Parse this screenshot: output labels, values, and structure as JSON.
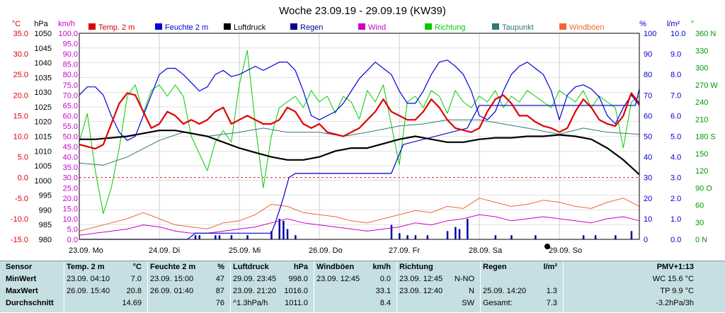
{
  "chart_data": {
    "type": "line",
    "title": "Woche 23.09.19 - 29.09.19 (KW39)",
    "x_ticks": [
      "23.09.",
      "24.09.",
      "25.09.",
      "26.09.",
      "27.09.",
      "28.09.",
      "29.09."
    ],
    "x_day_labels": [
      "Mo",
      "Di",
      "Mi",
      "Do",
      "Fr",
      "Sa",
      "So"
    ],
    "x_range": [
      0,
      7
    ],
    "axes": {
      "temp": {
        "unit": "°C",
        "color": "#e00000",
        "range": [
          -15,
          35
        ],
        "ticks": [
          "35.0",
          "30.0",
          "25.0",
          "20.0",
          "15.0",
          "10.0",
          "5.0",
          "0.0",
          "-5.0",
          "-10.0",
          "-15.0"
        ]
      },
      "press": {
        "unit": "hPa",
        "color": "#000000",
        "range": [
          980,
          1050
        ],
        "ticks": [
          "1050",
          "1045",
          "1040",
          "1035",
          "1030",
          "1025",
          "1020",
          "1015",
          "1010",
          "1005",
          "1000",
          "995",
          "990",
          "985",
          "980"
        ]
      },
      "wind": {
        "unit": "km/h",
        "color": "#cc00cc",
        "range": [
          0,
          100
        ],
        "ticks": [
          "100.0",
          "95.0",
          "90.0",
          "85.0",
          "80.0",
          "75.0",
          "70.0",
          "65.0",
          "60.0",
          "55.0",
          "50.0",
          "45.0",
          "40.0",
          "35.0",
          "30.0",
          "25.0",
          "20.0",
          "15.0",
          "10.0",
          "5.0",
          "0.0"
        ]
      },
      "hum": {
        "unit": "%",
        "color": "#0000cc",
        "range": [
          0,
          100
        ],
        "ticks": [
          "100",
          "90",
          "80",
          "70",
          "60",
          "50",
          "40",
          "30",
          "20",
          "10",
          "0"
        ]
      },
      "rain": {
        "unit": "l/m²",
        "color": "#0000cc",
        "range": [
          0,
          10
        ],
        "ticks": [
          "10.0",
          "9.0",
          "8.0",
          "7.0",
          "6.0",
          "5.0",
          "4.0",
          "3.0",
          "2.0",
          "1.0",
          "0.0"
        ]
      },
      "dir": {
        "unit": "°",
        "color": "#009900",
        "range": [
          0,
          360
        ],
        "ticks": [
          "360 N",
          "330",
          "300",
          "270 W",
          "240",
          "210",
          "180 S",
          "150",
          "120",
          "90 O",
          "60",
          "30",
          "0 N"
        ]
      }
    },
    "legend": [
      {
        "name": "Temp. 2 m",
        "color": "#e00000"
      },
      {
        "name": "Feuchte 2 m",
        "color": "#0000dd"
      },
      {
        "name": "Luftdruck",
        "color": "#000000"
      },
      {
        "name": "Regen",
        "color": "#000099"
      },
      {
        "name": "Wind",
        "color": "#cc00cc"
      },
      {
        "name": "Richtung",
        "color": "#00cc00"
      },
      {
        "name": "Taupunkt",
        "color": "#337777"
      },
      {
        "name": "Windböen",
        "color": "#ee6633"
      }
    ],
    "series": [
      {
        "name": "Temp. 2 m",
        "axis": "temp",
        "color": "#e00000",
        "width": 2.2,
        "x": [
          0,
          0.1,
          0.2,
          0.3,
          0.4,
          0.5,
          0.6,
          0.7,
          0.8,
          0.9,
          1.0,
          1.1,
          1.2,
          1.3,
          1.4,
          1.5,
          1.6,
          1.7,
          1.8,
          1.9,
          2.0,
          2.1,
          2.2,
          2.3,
          2.4,
          2.5,
          2.6,
          2.7,
          2.8,
          2.9,
          3.0,
          3.1,
          3.2,
          3.3,
          3.4,
          3.5,
          3.6,
          3.7,
          3.8,
          3.9,
          4.0,
          4.1,
          4.2,
          4.3,
          4.4,
          4.5,
          4.6,
          4.7,
          4.8,
          4.9,
          5.0,
          5.1,
          5.2,
          5.3,
          5.4,
          5.5,
          5.6,
          5.7,
          5.8,
          5.9,
          6.0,
          6.1,
          6.2,
          6.3,
          6.4,
          6.5,
          6.6,
          6.7,
          6.8,
          6.9,
          7.0
        ],
        "y": [
          8,
          7.5,
          7,
          8,
          13,
          18,
          20.5,
          20,
          16,
          12,
          13,
          16,
          15,
          13,
          14,
          13,
          14,
          16,
          17,
          13,
          14,
          15,
          14,
          13,
          13,
          14,
          17,
          16,
          13,
          12,
          13,
          11,
          10.5,
          10,
          11,
          12,
          14,
          16,
          19,
          16,
          15,
          14,
          14,
          16,
          19,
          17,
          14,
          12,
          11.5,
          11,
          12,
          16,
          19,
          20,
          18,
          15,
          15,
          13.5,
          12.5,
          12,
          11,
          12,
          16,
          19,
          17,
          14,
          13,
          12.5,
          15,
          20.5,
          18
        ]
      },
      {
        "name": "Feuchte 2 m",
        "axis": "hum",
        "color": "#0000dd",
        "width": 1.2,
        "x": [
          0,
          0.1,
          0.2,
          0.3,
          0.4,
          0.5,
          0.6,
          0.7,
          0.8,
          0.9,
          1.0,
          1.1,
          1.2,
          1.3,
          1.4,
          1.5,
          1.6,
          1.7,
          1.8,
          1.9,
          2.0,
          2.1,
          2.2,
          2.3,
          2.4,
          2.5,
          2.6,
          2.7,
          2.8,
          2.9,
          3.0,
          3.1,
          3.2,
          3.3,
          3.4,
          3.5,
          3.6,
          3.7,
          3.8,
          3.9,
          4.0,
          4.1,
          4.2,
          4.3,
          4.4,
          4.5,
          4.6,
          4.7,
          4.8,
          4.9,
          5.0,
          5.1,
          5.2,
          5.3,
          5.4,
          5.5,
          5.6,
          5.7,
          5.8,
          5.9,
          6.0,
          6.1,
          6.2,
          6.3,
          6.4,
          6.5,
          6.6,
          6.7,
          6.8,
          6.9,
          7.0
        ],
        "y": [
          70,
          74,
          74,
          70,
          60,
          52,
          48,
          50,
          60,
          70,
          80,
          83,
          83,
          80,
          76,
          72,
          74,
          80,
          82,
          79,
          80,
          82,
          84,
          82,
          84,
          86,
          86,
          82,
          72,
          60,
          58,
          60,
          62,
          66,
          72,
          78,
          82,
          86,
          83,
          80,
          72,
          66,
          66,
          72,
          80,
          86,
          87,
          84,
          80,
          72,
          60,
          58,
          62,
          72,
          80,
          84,
          86,
          83,
          80,
          72,
          58,
          70,
          74,
          75,
          73,
          69,
          60,
          56,
          64,
          70,
          65
        ]
      },
      {
        "name": "Luftdruck",
        "axis": "press",
        "color": "#000000",
        "width": 2.2,
        "x": [
          0,
          0.2,
          0.4,
          0.6,
          0.8,
          1.0,
          1.2,
          1.4,
          1.6,
          1.8,
          2.0,
          2.2,
          2.4,
          2.6,
          2.8,
          3.0,
          3.2,
          3.4,
          3.6,
          3.8,
          4.0,
          4.2,
          4.4,
          4.6,
          4.8,
          5.0,
          5.2,
          5.4,
          5.6,
          5.8,
          6.0,
          6.2,
          6.4,
          6.6,
          6.8,
          7.0
        ],
        "y": [
          1014,
          1014,
          1014.5,
          1015,
          1016,
          1017,
          1017,
          1016,
          1015,
          1013,
          1011,
          1009.5,
          1008,
          1007,
          1007,
          1008,
          1010,
          1011,
          1011,
          1012.5,
          1014,
          1015,
          1014,
          1013,
          1013,
          1014,
          1014.5,
          1014.5,
          1015,
          1015,
          1015.5,
          1015,
          1014,
          1011,
          1007,
          1002
        ]
      },
      {
        "name": "Taupunkt",
        "axis": "temp",
        "color": "#337777",
        "width": 1.0,
        "x": [
          0,
          0.3,
          0.6,
          1.0,
          1.3,
          1.6,
          2.0,
          2.3,
          2.6,
          3.0,
          3.3,
          3.6,
          4.0,
          4.3,
          4.6,
          5.0,
          5.3,
          5.6,
          6.0,
          6.3,
          6.6,
          7.0
        ],
        "y": [
          3.5,
          3,
          5,
          9,
          11,
          10,
          11,
          12,
          11,
          11,
          10,
          11,
          12.5,
          13,
          14,
          14,
          13,
          12,
          10.5,
          12,
          11,
          10.5
        ]
      },
      {
        "name": "Richtung",
        "axis": "dir",
        "color": "#00cc00",
        "width": 1.0,
        "x": [
          0,
          0.1,
          0.2,
          0.3,
          0.4,
          0.5,
          0.6,
          0.7,
          0.8,
          0.9,
          1.0,
          1.1,
          1.2,
          1.3,
          1.4,
          1.5,
          1.6,
          1.7,
          1.8,
          1.9,
          2.0,
          2.1,
          2.2,
          2.3,
          2.4,
          2.5,
          2.6,
          2.7,
          2.8,
          2.9,
          3.0,
          3.1,
          3.2,
          3.3,
          3.4,
          3.5,
          3.6,
          3.7,
          3.8,
          3.9,
          4.0,
          4.1,
          4.2,
          4.3,
          4.4,
          4.5,
          4.6,
          4.7,
          4.8,
          4.9,
          5.0,
          5.1,
          5.2,
          5.3,
          5.4,
          5.5,
          5.6,
          5.7,
          5.8,
          5.9,
          6.0,
          6.1,
          6.2,
          6.3,
          6.4,
          6.5,
          6.6,
          6.7,
          6.8,
          6.9,
          7.0
        ],
        "y": [
          170,
          220,
          120,
          45,
          90,
          160,
          250,
          270,
          220,
          260,
          270,
          250,
          270,
          250,
          180,
          150,
          120,
          170,
          190,
          170,
          270,
          330,
          200,
          90,
          180,
          230,
          240,
          250,
          230,
          260,
          240,
          250,
          220,
          250,
          240,
          210,
          260,
          240,
          270,
          200,
          130,
          240,
          250,
          230,
          260,
          250,
          220,
          260,
          240,
          230,
          250,
          240,
          260,
          230,
          250,
          240,
          260,
          250,
          240,
          230,
          260,
          250,
          240,
          260,
          230,
          250,
          240,
          230,
          160,
          240,
          250
        ]
      },
      {
        "name": "Wind",
        "axis": "wind",
        "color": "#cc00cc",
        "width": 1.0,
        "x": [
          0,
          0.2,
          0.4,
          0.6,
          0.8,
          1.0,
          1.2,
          1.4,
          1.6,
          1.8,
          2.0,
          2.2,
          2.4,
          2.6,
          2.8,
          3.0,
          3.2,
          3.4,
          3.6,
          3.8,
          4.0,
          4.2,
          4.4,
          4.6,
          4.8,
          5.0,
          5.2,
          5.4,
          5.6,
          5.8,
          6.0,
          6.2,
          6.4,
          6.6,
          6.8,
          7.0
        ],
        "y": [
          2,
          3,
          4,
          5,
          7,
          6,
          4,
          3,
          3,
          4,
          5,
          6,
          8,
          10,
          8,
          7,
          6,
          5,
          4,
          5,
          6,
          8,
          7,
          9,
          10,
          12,
          11,
          9,
          10,
          11,
          10,
          9,
          8,
          10,
          11,
          9
        ]
      },
      {
        "name": "Windböen",
        "axis": "wind",
        "color": "#ee6633",
        "width": 1.0,
        "x": [
          0,
          0.2,
          0.4,
          0.6,
          0.8,
          1.0,
          1.2,
          1.4,
          1.6,
          1.8,
          2.0,
          2.2,
          2.4,
          2.6,
          2.8,
          3.0,
          3.2,
          3.4,
          3.6,
          3.8,
          4.0,
          4.2,
          4.4,
          4.6,
          4.8,
          5.0,
          5.2,
          5.4,
          5.6,
          5.8,
          6.0,
          6.2,
          6.4,
          6.6,
          6.8,
          7.0
        ],
        "y": [
          4,
          6,
          8,
          10,
          13,
          10,
          7,
          6,
          5,
          8,
          9,
          12,
          17,
          16,
          13,
          12,
          11,
          9,
          8,
          10,
          12,
          14,
          13,
          16,
          15,
          20,
          18,
          16,
          17,
          19,
          18,
          16,
          15,
          18,
          20,
          16
        ]
      }
    ],
    "rain": {
      "name": "Regen",
      "axis": "rain",
      "color": "#0000aa",
      "bars": {
        "x": [
          1.45,
          1.5,
          1.7,
          1.75,
          1.9,
          2.1,
          2.4,
          2.5,
          2.55,
          2.6,
          2.7,
          3.9,
          4.0,
          4.1,
          4.2,
          4.35,
          4.6,
          4.7,
          4.75,
          4.85,
          5.2,
          5.4,
          5.7,
          6.3,
          6.45,
          6.7,
          6.9
        ],
        "y": [
          0.2,
          0.2,
          0.2,
          0.2,
          0.2,
          0.2,
          0.4,
          1.0,
          0.9,
          0.5,
          0.2,
          0.7,
          0.3,
          0.2,
          0.2,
          0.2,
          0.4,
          0.6,
          0.5,
          1.0,
          0.2,
          0.2,
          0.2,
          0.2,
          0.2,
          0.2,
          0.4
        ]
      },
      "cum": {
        "x": [
          0,
          1.35,
          1.45,
          2.4,
          2.45,
          2.55,
          2.62,
          2.7,
          3.9,
          4.05,
          4.85,
          5.0,
          6.95,
          7.0
        ],
        "y": [
          0,
          0,
          0.3,
          0.3,
          0.8,
          2.0,
          3.0,
          3.2,
          3.2,
          4.6,
          5.4,
          6.5,
          6.5,
          7.3
        ]
      }
    }
  },
  "sun_marker_day": 5.85,
  "panel": {
    "sensor": {
      "header": "Sensor",
      "min": "MinWert",
      "max": "MaxWert",
      "avg": "Durchschnitt"
    },
    "temp": {
      "header": "Temp. 2 m",
      "unit": "°C",
      "min_time": "23.09.  04:10",
      "min_val": "7.0",
      "max_time": "26.09.  15:40",
      "max_val": "20.8",
      "avg_val": "14.69"
    },
    "hum": {
      "header": "Feuchte  2 m",
      "unit": "%",
      "min_time": "23.09.  15:00",
      "min_val": "47",
      "max_time": "26.09.  01:40",
      "max_val": "87",
      "avg_val": "76"
    },
    "press": {
      "header": "Luftdruck",
      "unit": "hPa",
      "min_time": "29.09.  23:45",
      "min_val": "998.0",
      "max_time": "23.09.  21:20",
      "max_val": "1016.0",
      "avg_time": "^1.3hPa/h",
      "avg_val": "1011.0"
    },
    "gust": {
      "header": "Windböen",
      "unit": "km/h",
      "min_val": "0.0",
      "max_val": "33.1",
      "avg_val": "8.4"
    },
    "dir": {
      "header": "Richtung",
      "min_time": "23.09.  12:45",
      "min_val": "N-NO",
      "max_time": "23.09.  12:40",
      "max_val": "N",
      "avg_val": "SW"
    },
    "rain_col": {
      "header": "Regen",
      "unit": "l/m²",
      "max_time": "25.09.  14:20",
      "max_val": "1.3",
      "avg_time": "Gesamt:",
      "avg_val": "7.3"
    },
    "pmv": {
      "header": "PMV+1:13",
      "line1": "WC 15.6 °C",
      "line2": "TP 9.9 °C",
      "line3": "-3.2hPa/3h"
    }
  }
}
